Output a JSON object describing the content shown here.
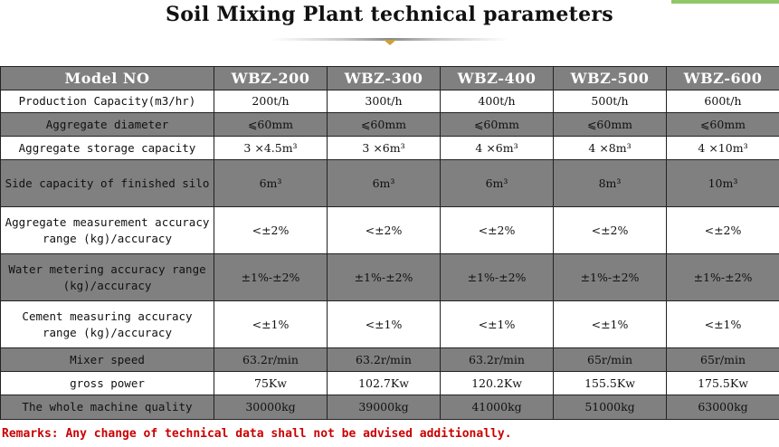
{
  "title": "Soil Mixing Plant technical parameters",
  "colors": {
    "header_bg": "#808080",
    "shaded_row_bg": "#808080",
    "remarks_text": "#cc0000",
    "title_accent": "#c8a23c"
  },
  "table": {
    "columns": [
      "Model NO",
      "WBZ-200",
      "WBZ-300",
      "WBZ-400",
      "WBZ-500",
      "WBZ-600"
    ],
    "rows": [
      {
        "label": "Production Capacity(m3/hr)",
        "values": [
          "200t/h",
          "300t/h",
          "400t/h",
          "500t/h",
          "600t/h"
        ],
        "shade": "white"
      },
      {
        "label": "Aggregate diameter",
        "values": [
          "⩽60mm",
          "⩽60mm",
          "⩽60mm",
          "⩽60mm",
          "⩽60mm"
        ],
        "shade": "gray"
      },
      {
        "label": "Aggregate storage capacity",
        "values": [
          "3 ×4.5m³",
          "3 ×6m³",
          "4 ×6m³",
          "4 ×8m³",
          "4 ×10m³"
        ],
        "shade": "white"
      },
      {
        "label": "Side capacity of finished silo",
        "values": [
          "6m³",
          "6m³",
          "6m³",
          "8m³",
          "10m³"
        ],
        "shade": "gray"
      },
      {
        "label": "Aggregate measurement accuracy range (kg)/accuracy",
        "values": [
          "<±2%",
          "<±2%",
          "<±2%",
          "<±2%",
          "<±2%"
        ],
        "shade": "white"
      },
      {
        "label": "Water metering accuracy range (kg)/accuracy",
        "values": [
          "±1%-±2%",
          "±1%-±2%",
          "±1%-±2%",
          "±1%-±2%",
          "±1%-±2%"
        ],
        "shade": "gray"
      },
      {
        "label": "Cement measuring accuracy range (kg)/accuracy",
        "values": [
          "<±1%",
          "<±1%",
          "<±1%",
          "<±1%",
          "<±1%"
        ],
        "shade": "white"
      },
      {
        "label": "Mixer speed",
        "values": [
          "63.2r/min",
          "63.2r/min",
          "63.2r/min",
          "65r/min",
          "65r/min"
        ],
        "shade": "gray"
      },
      {
        "label": "gross power",
        "values": [
          "75Kw",
          "102.7Kw",
          "120.2Kw",
          "155.5Kw",
          "175.5Kw"
        ],
        "shade": "white"
      },
      {
        "label": "The whole machine quality",
        "values": [
          "30000kg",
          "39000kg",
          "41000kg",
          "51000kg",
          "63000kg"
        ],
        "shade": "gray"
      }
    ]
  },
  "remarks": "Remarks: Any change of technical data shall not be advised additionally."
}
